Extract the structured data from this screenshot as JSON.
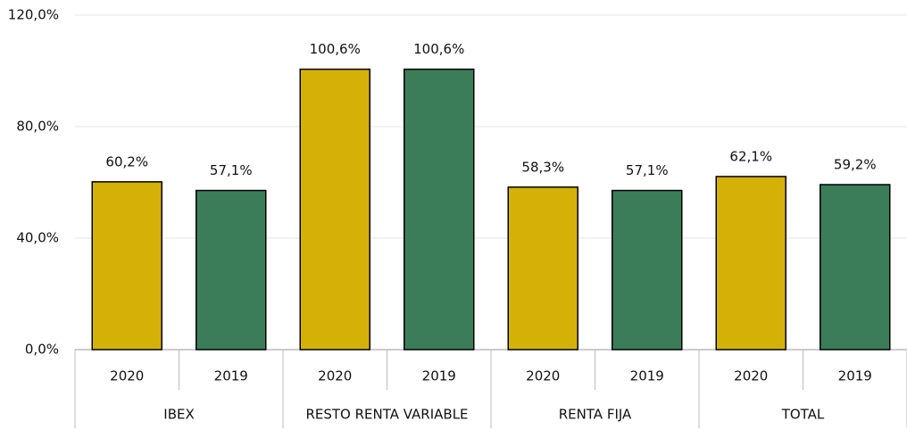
{
  "chart_data": {
    "type": "bar",
    "groups": [
      "IBEX",
      "RESTO RENTA VARIABLE",
      "RENTA FIJA",
      "TOTAL"
    ],
    "categories": [
      "2020",
      "2019",
      "2020",
      "2019",
      "2020",
      "2019",
      "2020",
      "2019"
    ],
    "values": [
      60.2,
      57.1,
      100.6,
      100.6,
      58.3,
      57.1,
      62.1,
      59.2
    ],
    "value_labels": [
      "60,2%",
      "57,1%",
      "100,6%",
      "100,6%",
      "58,3%",
      "57,1%",
      "62,1%",
      "59,2%"
    ],
    "colors": [
      "#d4b106",
      "#3b7d58",
      "#d4b106",
      "#3b7d58",
      "#d4b106",
      "#3b7d58",
      "#d4b106",
      "#3b7d58"
    ],
    "ylim": [
      0,
      120
    ],
    "yticks": [
      {
        "value": 0,
        "label": "0,0%"
      },
      {
        "value": 40,
        "label": "40,0%"
      },
      {
        "value": 80,
        "label": "80,0%"
      },
      {
        "value": 120,
        "label": "120,0%"
      }
    ],
    "grid": true
  }
}
